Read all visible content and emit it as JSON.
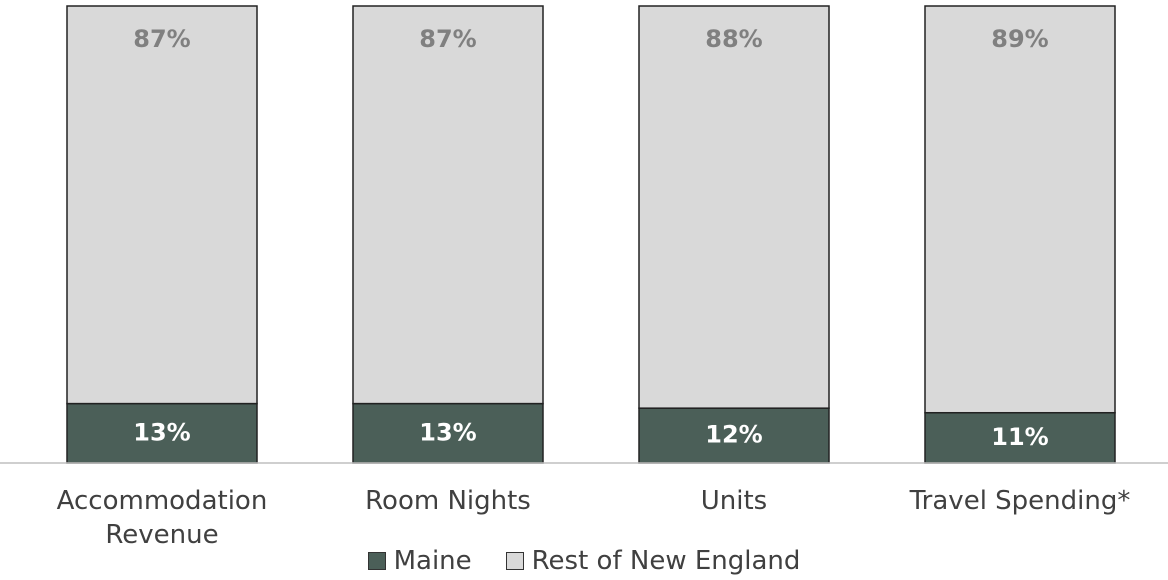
{
  "chart_data": {
    "type": "bar",
    "stacked": true,
    "categories": [
      "Accommodation Revenue",
      "Room Nights",
      "Units",
      "Travel Spending*"
    ],
    "series": [
      {
        "name": "Maine",
        "color": "#4b5f58",
        "label_color": "#ffffff",
        "values": [
          13,
          13,
          12,
          11
        ],
        "value_labels": [
          "13%",
          "13%",
          "12%",
          "11%"
        ]
      },
      {
        "name": "Rest of New England",
        "color": "#d9d9d9",
        "label_color": "#808080",
        "values": [
          87,
          87,
          88,
          89
        ],
        "value_labels": [
          "87%",
          "87%",
          "88%",
          "89%"
        ]
      }
    ],
    "ylim": [
      0,
      100
    ],
    "legend": "bottom"
  }
}
